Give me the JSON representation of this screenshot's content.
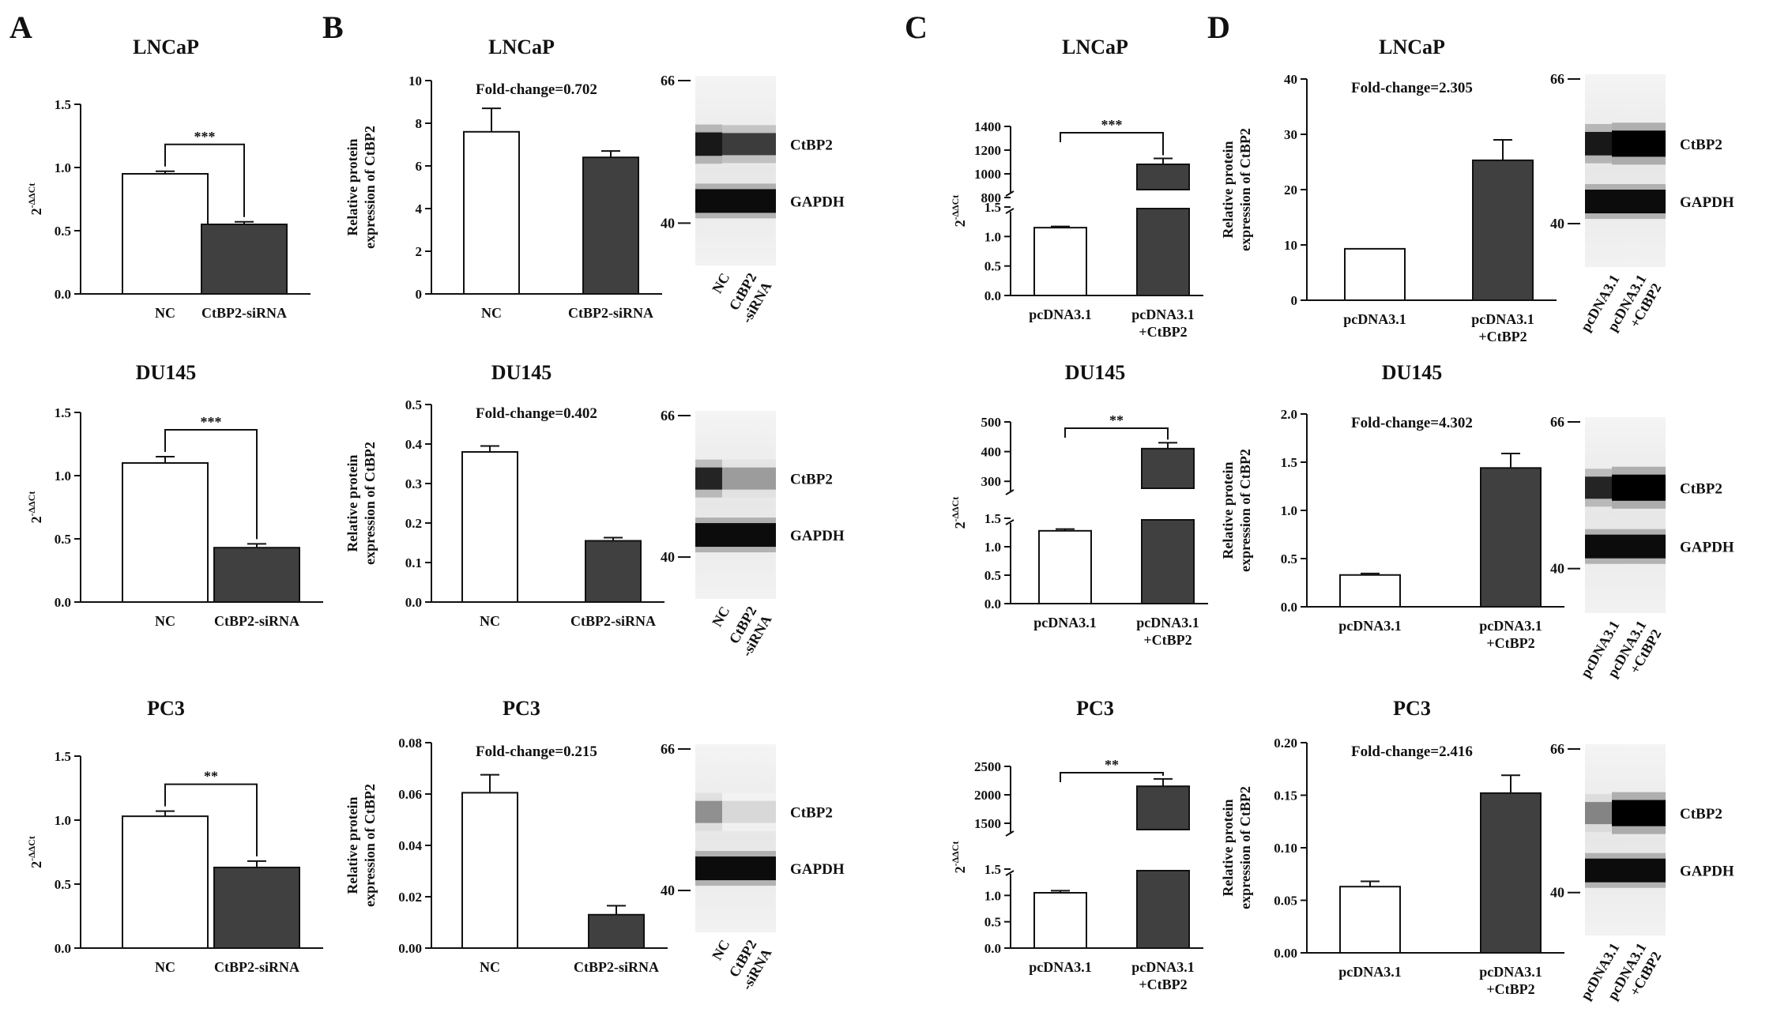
{
  "panel_letters": [
    "A",
    "B",
    "C",
    "D"
  ],
  "colors": {
    "control_bar": "#ffffff",
    "treated_bar": "#404040",
    "ink": "#111111"
  },
  "chart_data": [
    {
      "id": "A1",
      "type": "bar",
      "title": "LNCaP",
      "ylabel": "2-ΔΔCt",
      "categories": [
        "NC",
        "CtBP2-siRNA"
      ],
      "values": [
        0.95,
        0.55
      ],
      "errors": [
        0.02,
        0.02
      ],
      "ylim": [
        0,
        1.5
      ],
      "yticks": [
        "0.0",
        "0.5",
        "1.0",
        "1.5"
      ],
      "significance": "***",
      "grid": false
    },
    {
      "id": "A2",
      "type": "bar",
      "title": "DU145",
      "ylabel": "2-ΔΔCt",
      "categories": [
        "NC",
        "CtBP2-siRNA"
      ],
      "values": [
        1.1,
        0.43
      ],
      "errors": [
        0.05,
        0.03
      ],
      "ylim": [
        0,
        1.5
      ],
      "yticks": [
        "0.0",
        "0.5",
        "1.0",
        "1.5"
      ],
      "significance": "***",
      "grid": false
    },
    {
      "id": "A3",
      "type": "bar",
      "title": "PC3",
      "ylabel": "2-ΔΔCt",
      "categories": [
        "NC",
        "CtBP2-siRNA"
      ],
      "values": [
        1.03,
        0.63
      ],
      "errors": [
        0.04,
        0.05
      ],
      "ylim": [
        0,
        1.5
      ],
      "yticks": [
        "0.0",
        "0.5",
        "1.0",
        "1.5"
      ],
      "significance": "**",
      "grid": false
    },
    {
      "id": "B1",
      "type": "bar",
      "title": "LNCaP",
      "ylabel": "Relative protein expression of CtBP2",
      "categories": [
        "NC",
        "CtBP2-siRNA"
      ],
      "values": [
        7.6,
        6.4
      ],
      "errors": [
        1.1,
        0.3
      ],
      "ylim": [
        0,
        10
      ],
      "yticks": [
        "0",
        "2",
        "4",
        "6",
        "8",
        "10"
      ],
      "fold_change": "Fold-change=0.702",
      "grid": false
    },
    {
      "id": "B2",
      "type": "bar",
      "title": "DU145",
      "ylabel": "Relative protein expression of CtBP2",
      "categories": [
        "NC",
        "CtBP2-siRNA"
      ],
      "values": [
        0.38,
        0.155
      ],
      "errors": [
        0.015,
        0.008
      ],
      "ylim": [
        0,
        0.5
      ],
      "yticks": [
        "0.0",
        "0.1",
        "0.2",
        "0.3",
        "0.4",
        "0.5"
      ],
      "fold_change": "Fold-change=0.402",
      "grid": false
    },
    {
      "id": "B3",
      "type": "bar",
      "title": "PC3",
      "ylabel": "Relative protein expression of CtBP2",
      "categories": [
        "NC",
        "CtBP2-siRNA"
      ],
      "values": [
        0.0605,
        0.013
      ],
      "errors": [
        0.007,
        0.0035
      ],
      "ylim": [
        0,
        0.08
      ],
      "yticks": [
        "0.00",
        "0.02",
        "0.04",
        "0.06",
        "0.08"
      ],
      "fold_change": "Fold-change=0.215",
      "grid": false
    },
    {
      "id": "C1",
      "type": "bar",
      "title": "LNCaP",
      "ylabel": "2-ΔΔCt",
      "categories": [
        "pcDNA3.1",
        "pcDNA3.1 +CtBP2"
      ],
      "values": [
        1.15,
        1080
      ],
      "errors": [
        0.02,
        50
      ],
      "broken_axis": {
        "lower": [
          0,
          1.5
        ],
        "upper": [
          800,
          1400
        ]
      },
      "yticks_lower": [
        "0.0",
        "0.5",
        "1.0",
        "1.5"
      ],
      "yticks_upper": [
        "800",
        "1000",
        "1200",
        "1400"
      ],
      "significance": "***",
      "grid": false
    },
    {
      "id": "C2",
      "type": "bar",
      "title": "DU145",
      "ylabel": "2-ΔΔCt",
      "categories": [
        "pcDNA3.1",
        "pcDNA3.1 +CtBP2"
      ],
      "values": [
        1.28,
        410
      ],
      "errors": [
        0.03,
        20
      ],
      "broken_axis": {
        "lower": [
          0,
          1.5
        ],
        "upper": [
          250,
          500
        ]
      },
      "yticks_lower": [
        "0.0",
        "0.5",
        "1.0",
        "1.5"
      ],
      "yticks_upper": [
        "300",
        "400",
        "500"
      ],
      "significance": "**",
      "grid": false
    },
    {
      "id": "C3",
      "type": "bar",
      "title": "PC3",
      "ylabel": "2-ΔΔCt",
      "categories": [
        "pcDNA3.1",
        "pcDNA3.1 +CtBP2"
      ],
      "values": [
        1.05,
        2150
      ],
      "errors": [
        0.04,
        130
      ],
      "broken_axis": {
        "lower": [
          0,
          1.5
        ],
        "upper": [
          1250,
          2500
        ]
      },
      "yticks_lower": [
        "0.0",
        "0.5",
        "1.0",
        "1.5"
      ],
      "yticks_upper": [
        "1500",
        "2000",
        "2500"
      ],
      "significance": "**",
      "grid": false
    },
    {
      "id": "D1",
      "type": "bar",
      "title": "LNCaP",
      "ylabel": "Relative protein expression of CtBP2",
      "categories": [
        "pcDNA3.1",
        "pcDNA3.1 +CtBP2"
      ],
      "values": [
        9.3,
        25.3
      ],
      "errors": [
        0,
        3.7
      ],
      "ylim": [
        0,
        40
      ],
      "yticks": [
        "0",
        "10",
        "20",
        "30",
        "40"
      ],
      "fold_change": "Fold-change=2.305",
      "grid": false
    },
    {
      "id": "D2",
      "type": "bar",
      "title": "DU145",
      "ylabel": "Relative protein expression of CtBP2",
      "categories": [
        "pcDNA3.1",
        "pcDNA3.1 +CtBP2"
      ],
      "values": [
        0.33,
        1.44
      ],
      "errors": [
        0.015,
        0.15
      ],
      "ylim": [
        0,
        2.0
      ],
      "yticks": [
        "0.0",
        "0.5",
        "1.0",
        "1.5",
        "2.0"
      ],
      "fold_change": "Fold-change=4.302",
      "grid": false
    },
    {
      "id": "D3",
      "type": "bar",
      "title": "PC3",
      "ylabel": "Relative protein expression of CtBP2",
      "categories": [
        "pcDNA3.1",
        "pcDNA3.1 +CtBP2"
      ],
      "values": [
        0.063,
        0.152
      ],
      "errors": [
        0.005,
        0.017
      ],
      "ylim": [
        0,
        0.2
      ],
      "yticks": [
        "0.00",
        "0.05",
        "0.10",
        "0.15",
        "0.20"
      ],
      "fold_change": "Fold-change=2.416",
      "grid": false
    }
  ],
  "blots": [
    {
      "id": "B1",
      "mw_top": "66",
      "mw_bottom": "40",
      "bands": [
        "CtBP2",
        "GAPDH"
      ],
      "lanes": [
        "NC",
        "CtBP2 -siRNA"
      ],
      "ctbp2_intensity": [
        0.9,
        0.75
      ],
      "gapdh_intensity": [
        0.95,
        0.95
      ]
    },
    {
      "id": "B2",
      "mw_top": "66",
      "mw_bottom": "40",
      "bands": [
        "CtBP2",
        "GAPDH"
      ],
      "lanes": [
        "NC",
        "CtBP2 -siRNA"
      ],
      "ctbp2_intensity": [
        0.85,
        0.35
      ],
      "gapdh_intensity": [
        0.95,
        0.95
      ]
    },
    {
      "id": "B3",
      "mw_top": "66",
      "mw_bottom": "40",
      "bands": [
        "CtBP2",
        "GAPDH"
      ],
      "lanes": [
        "NC",
        "CtBP2 -siRNA"
      ],
      "ctbp2_intensity": [
        0.4,
        0.1
      ],
      "gapdh_intensity": [
        0.95,
        0.95
      ]
    },
    {
      "id": "D1",
      "mw_top": "66",
      "mw_bottom": "40",
      "bands": [
        "CtBP2",
        "GAPDH"
      ],
      "lanes": [
        "pcDNA3.1",
        "pcDNA3.1 +CtBP2"
      ],
      "ctbp2_intensity": [
        0.9,
        1.0
      ],
      "gapdh_intensity": [
        0.95,
        0.95
      ]
    },
    {
      "id": "D2",
      "mw_top": "66",
      "mw_bottom": "40",
      "bands": [
        "CtBP2",
        "GAPDH"
      ],
      "lanes": [
        "pcDNA3.1",
        "pcDNA3.1 +CtBP2"
      ],
      "ctbp2_intensity": [
        0.85,
        1.0
      ],
      "gapdh_intensity": [
        0.95,
        0.95
      ]
    },
    {
      "id": "D3",
      "mw_top": "66",
      "mw_bottom": "40",
      "bands": [
        "CtBP2",
        "GAPDH"
      ],
      "lanes": [
        "pcDNA3.1",
        "pcDNA3.1 +CtBP2"
      ],
      "ctbp2_intensity": [
        0.45,
        1.0
      ],
      "gapdh_intensity": [
        0.95,
        0.95
      ]
    }
  ]
}
